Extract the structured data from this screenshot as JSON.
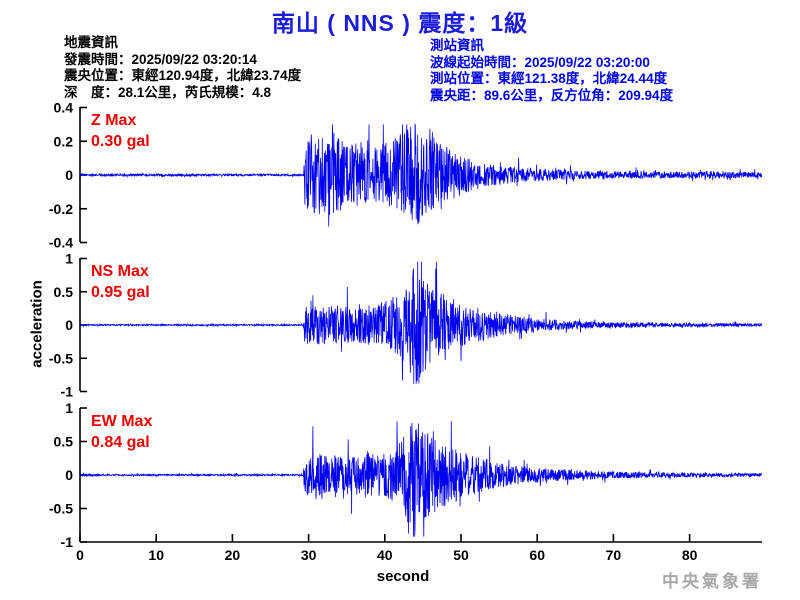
{
  "header": {
    "title": "南山 ( NNS ) 震度：1級"
  },
  "colors": {
    "title_blue": "#1c1cdd",
    "info_blue": "#0000e6",
    "text_black": "#000000",
    "trace_blue": "#0000f0",
    "max_label_red": "#ee0000",
    "axis_black": "#000000",
    "watermark_gray": "#a8a8a8"
  },
  "earthquake_info": {
    "heading": "地震資訊",
    "lines": [
      "發震時間：2025/09/22 03:20:14",
      "震央位置：東經120.94度，北緯23.74度",
      "深　度：28.1公里，芮氏規模：4.8"
    ]
  },
  "station_info": {
    "heading": "測站資訊",
    "lines": [
      "波線起始時間：2025/09/22 03:20:00",
      "測站位置：東經121.38度，北緯24.44度",
      "震央距：89.6公里，反方位角：209.94度"
    ]
  },
  "watermark": "中央氣象署",
  "chart_data": {
    "type": "line",
    "title": "",
    "xlabel": "second",
    "ylabel": "acceleration",
    "x_range": [
      0,
      89.5
    ],
    "x_ticks": [
      0,
      10,
      20,
      30,
      40,
      50,
      60,
      70,
      80
    ],
    "grid": false,
    "legend_position": "none",
    "sample_rate_hz": 25,
    "event_onset_s": 29.4,
    "peak_time_s": 44,
    "series": [
      {
        "name": "Z",
        "max_label": "Z Max",
        "max_value": "0.30 gal",
        "max_gal": 0.3,
        "ylim": [
          -0.4,
          0.4
        ],
        "y_ticks": [
          0.4,
          0.2,
          0,
          -0.2,
          -0.4
        ],
        "clamp": [
          -0.33,
          0.3
        ],
        "envelope_t_gal": [
          [
            0,
            0.006
          ],
          [
            29.3,
            0.006
          ],
          [
            29.5,
            0.23
          ],
          [
            30.5,
            0.26
          ],
          [
            32,
            0.22
          ],
          [
            33.5,
            0.26
          ],
          [
            35,
            0.17
          ],
          [
            37,
            0.2
          ],
          [
            38.5,
            0.16
          ],
          [
            40,
            0.19
          ],
          [
            41.5,
            0.22
          ],
          [
            43,
            0.28
          ],
          [
            44,
            0.31
          ],
          [
            45,
            0.27
          ],
          [
            46,
            0.29
          ],
          [
            47,
            0.21
          ],
          [
            48.5,
            0.16
          ],
          [
            50,
            0.12
          ],
          [
            52,
            0.09
          ],
          [
            54,
            0.07
          ],
          [
            56,
            0.055
          ],
          [
            58,
            0.045
          ],
          [
            61,
            0.035
          ],
          [
            65,
            0.027
          ],
          [
            70,
            0.022
          ],
          [
            76,
            0.019
          ],
          [
            82,
            0.021
          ],
          [
            89.5,
            0.016
          ]
        ]
      },
      {
        "name": "NS",
        "max_label": "NS Max",
        "max_value": "0.95 gal",
        "max_gal": 0.95,
        "ylim": [
          -1,
          1
        ],
        "y_ticks": [
          1,
          0.5,
          0,
          -0.5,
          -1
        ],
        "clamp": [
          -0.9,
          0.95
        ],
        "envelope_t_gal": [
          [
            0,
            0.01
          ],
          [
            29.3,
            0.01
          ],
          [
            29.5,
            0.28
          ],
          [
            31,
            0.3
          ],
          [
            33,
            0.28
          ],
          [
            35,
            0.33
          ],
          [
            37,
            0.28
          ],
          [
            39,
            0.32
          ],
          [
            40.5,
            0.38
          ],
          [
            42,
            0.5
          ],
          [
            43,
            0.62
          ],
          [
            43.8,
            0.9
          ],
          [
            44.3,
            0.95
          ],
          [
            45,
            0.72
          ],
          [
            46,
            0.6
          ],
          [
            47,
            0.52
          ],
          [
            48,
            0.45
          ],
          [
            49.5,
            0.38
          ],
          [
            51,
            0.3
          ],
          [
            52.5,
            0.25
          ],
          [
            54,
            0.2
          ],
          [
            56,
            0.16
          ],
          [
            58,
            0.13
          ],
          [
            60,
            0.1
          ],
          [
            62.5,
            0.08
          ],
          [
            65,
            0.065
          ],
          [
            68,
            0.05
          ],
          [
            72,
            0.04
          ],
          [
            77,
            0.032
          ],
          [
            83,
            0.026
          ],
          [
            89.5,
            0.02
          ]
        ]
      },
      {
        "name": "EW",
        "max_label": "EW Max",
        "max_value": "0.84 gal",
        "max_gal": 0.84,
        "ylim": [
          -1,
          1
        ],
        "y_ticks": [
          1,
          0.5,
          0,
          -0.5,
          -1
        ],
        "clamp": [
          -0.92,
          0.84
        ],
        "envelope_t_gal": [
          [
            0,
            0.012
          ],
          [
            29.3,
            0.012
          ],
          [
            29.5,
            0.3
          ],
          [
            31,
            0.32
          ],
          [
            33,
            0.28
          ],
          [
            34.5,
            0.35
          ],
          [
            36,
            0.3
          ],
          [
            37.5,
            0.34
          ],
          [
            39,
            0.3
          ],
          [
            40.5,
            0.36
          ],
          [
            42,
            0.5
          ],
          [
            43,
            0.72
          ],
          [
            43.6,
            0.84
          ],
          [
            44.5,
            0.78
          ],
          [
            45.5,
            0.66
          ],
          [
            46.5,
            0.56
          ],
          [
            48,
            0.46
          ],
          [
            49.5,
            0.4
          ],
          [
            51,
            0.32
          ],
          [
            53,
            0.25
          ],
          [
            55,
            0.18
          ],
          [
            57,
            0.14
          ],
          [
            59,
            0.12
          ],
          [
            61,
            0.1
          ],
          [
            64,
            0.08
          ],
          [
            67,
            0.065
          ],
          [
            71,
            0.05
          ],
          [
            76,
            0.04
          ],
          [
            82,
            0.032
          ],
          [
            89.5,
            0.026
          ]
        ]
      }
    ]
  }
}
